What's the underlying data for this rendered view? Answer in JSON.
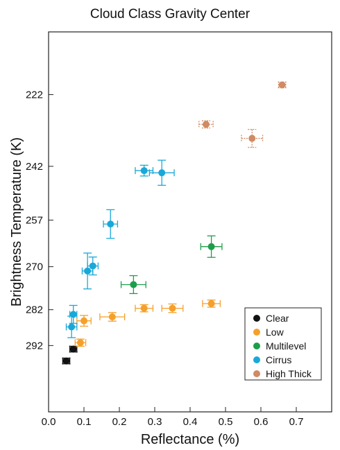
{
  "chart_data": {
    "type": "scatter",
    "title": "Cloud Class Gravity Center",
    "xlabel": "Reflectance (%)",
    "ylabel": "Brightness Temperature (K)",
    "xlim": [
      0.0,
      0.8
    ],
    "ylim": [
      310.5,
      204.5
    ],
    "y_reversed": true,
    "x_ticks": [
      "0.0",
      "0.1",
      "0.2",
      "0.3",
      "0.4",
      "0.5",
      "0.6",
      "0.7"
    ],
    "y_ticks": [
      "222",
      "242",
      "257",
      "270",
      "282",
      "292"
    ],
    "error_bars": true,
    "legend_position": "bottom-right",
    "series": [
      {
        "name": "Clear",
        "color": "#111111",
        "points": [
          {
            "x": 0.05,
            "y": 296.3,
            "xerr": 0.01,
            "yerr": 0.8
          },
          {
            "x": 0.07,
            "y": 293.0,
            "xerr": 0.01,
            "yerr": 0.8
          }
        ]
      },
      {
        "name": "Low",
        "color": "#f5a02a",
        "points": [
          {
            "x": 0.09,
            "y": 291.2,
            "xerr": 0.015,
            "yerr": 1.0
          },
          {
            "x": 0.1,
            "y": 285.1,
            "xerr": 0.02,
            "yerr": 1.5
          },
          {
            "x": 0.18,
            "y": 284.0,
            "xerr": 0.035,
            "yerr": 1.2
          },
          {
            "x": 0.27,
            "y": 281.6,
            "xerr": 0.025,
            "yerr": 1.0
          },
          {
            "x": 0.35,
            "y": 281.6,
            "xerr": 0.03,
            "yerr": 1.2
          },
          {
            "x": 0.46,
            "y": 280.3,
            "xerr": 0.025,
            "yerr": 1.0
          }
        ]
      },
      {
        "name": "Multilevel",
        "color": "#1e9e4a",
        "points": [
          {
            "x": 0.24,
            "y": 275.0,
            "xerr": 0.035,
            "yerr": 2.5
          },
          {
            "x": 0.46,
            "y": 264.4,
            "xerr": 0.03,
            "yerr": 3.0
          }
        ]
      },
      {
        "name": "Cirrus",
        "color": "#19a8d8",
        "points": [
          {
            "x": 0.065,
            "y": 286.8,
            "xerr": 0.015,
            "yerr": 3.0
          },
          {
            "x": 0.07,
            "y": 283.3,
            "xerr": 0.01,
            "yerr": 2.5
          },
          {
            "x": 0.11,
            "y": 271.2,
            "xerr": 0.015,
            "yerr": 5.0
          },
          {
            "x": 0.125,
            "y": 269.8,
            "xerr": 0.015,
            "yerr": 2.5
          },
          {
            "x": 0.175,
            "y": 258.1,
            "xerr": 0.02,
            "yerr": 4.0
          },
          {
            "x": 0.27,
            "y": 243.2,
            "xerr": 0.025,
            "yerr": 1.5
          },
          {
            "x": 0.32,
            "y": 243.8,
            "xerr": 0.035,
            "yerr": 3.5
          }
        ]
      },
      {
        "name": "High Thick",
        "color": "#d08a64",
        "points": [
          {
            "x": 0.445,
            "y": 230.3,
            "xerr": 0.02,
            "yerr": 1.0
          },
          {
            "x": 0.575,
            "y": 234.2,
            "xerr": 0.03,
            "yerr": 2.5
          },
          {
            "x": 0.66,
            "y": 219.3,
            "xerr": 0.01,
            "yerr": 0.8
          }
        ]
      }
    ]
  }
}
